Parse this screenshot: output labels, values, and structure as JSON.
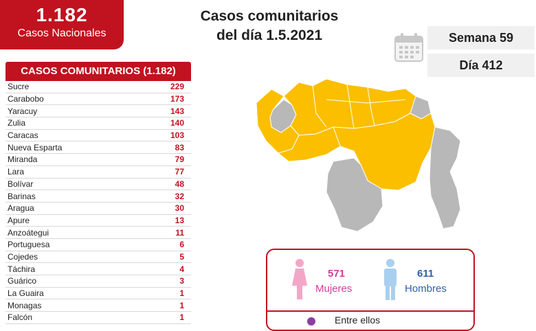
{
  "header": {
    "total_number": "1.182",
    "total_label": "Casos Nacionales",
    "title_line1": "Casos comunitarios",
    "title_line2": "del día 1.5.2021",
    "week": "Semana 59",
    "day": "Día 412"
  },
  "table": {
    "title": "CASOS COMUNITARIOS (1.182)",
    "rows": [
      {
        "name": "Sucre",
        "value": "229"
      },
      {
        "name": "Carabobo",
        "value": "173"
      },
      {
        "name": "Yaracuy",
        "value": "143"
      },
      {
        "name": "Zulia",
        "value": "140"
      },
      {
        "name": "Caracas",
        "value": "103"
      },
      {
        "name": "Nueva Esparta",
        "value": "83"
      },
      {
        "name": "Miranda",
        "value": "79"
      },
      {
        "name": "Lara",
        "value": "77"
      },
      {
        "name": "Bolívar",
        "value": "48"
      },
      {
        "name": "Barinas",
        "value": "32"
      },
      {
        "name": "Aragua",
        "value": "30"
      },
      {
        "name": "Apure",
        "value": "13"
      },
      {
        "name": "Anzoátegui",
        "value": "11"
      },
      {
        "name": "Portuguesa",
        "value": "6"
      },
      {
        "name": "Cojedes",
        "value": "5"
      },
      {
        "name": "Táchira",
        "value": "4"
      },
      {
        "name": "Guárico",
        "value": "3"
      },
      {
        "name": "La Guaira",
        "value": "1"
      },
      {
        "name": "Monagas",
        "value": "1"
      },
      {
        "name": "Falcón",
        "value": "1"
      }
    ]
  },
  "gender": {
    "women_count": "571",
    "women_label": "Mujeres",
    "men_count": "611",
    "men_label": "Hombres",
    "extra_label": "Entre ellos"
  },
  "colors": {
    "accent_red": "#c1121f",
    "map_yellow": "#fbbf00",
    "map_gray": "#b8b8b8",
    "women_pink": "#f4a6c8",
    "men_blue": "#a9d0ee"
  },
  "icons": [
    "calendar-icon",
    "woman-icon",
    "man-icon"
  ]
}
